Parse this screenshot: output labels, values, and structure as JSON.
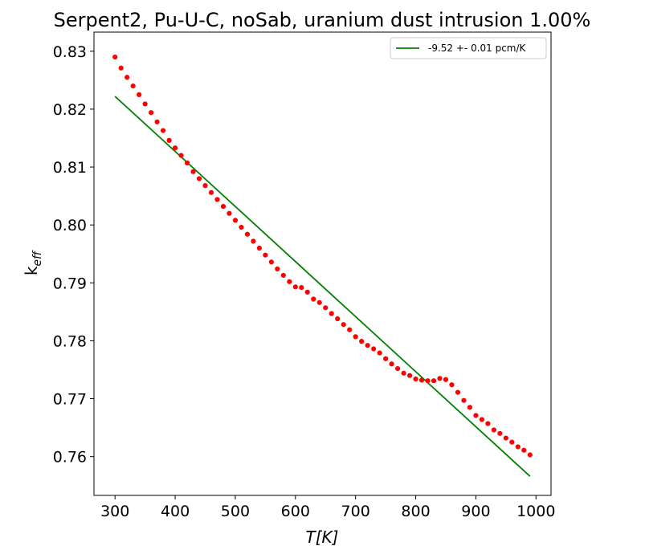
{
  "chart_data": {
    "type": "scatter",
    "title": "Serpent2, Pu-U-C, noSab, uranium dust intrusion  1.00%",
    "xlabel": "T[K]",
    "ylabel_main": "k",
    "ylabel_sub": "eff",
    "xlim": [
      265,
      1025
    ],
    "ylim": [
      0.7533,
      0.8333
    ],
    "x_ticks": [
      300,
      400,
      500,
      600,
      700,
      800,
      900,
      1000
    ],
    "x_tick_labels": [
      "300",
      "400",
      "500",
      "600",
      "700",
      "800",
      "900",
      "1000"
    ],
    "y_ticks": [
      0.76,
      0.77,
      0.78,
      0.79,
      0.8,
      0.81,
      0.82,
      0.83
    ],
    "y_tick_labels": [
      "0.76",
      "0.77",
      "0.78",
      "0.79",
      "0.80",
      "0.81",
      "0.82",
      "0.83"
    ],
    "legend_position": "top-right",
    "grid": false,
    "series": [
      {
        "kind": "scatter",
        "color": "#ff0000",
        "x": [
          300,
          310,
          320,
          330,
          340,
          350,
          360,
          370,
          380,
          390,
          400,
          410,
          420,
          430,
          440,
          450,
          460,
          470,
          480,
          490,
          500,
          510,
          520,
          530,
          540,
          550,
          560,
          570,
          580,
          590,
          600,
          610,
          620,
          630,
          640,
          650,
          660,
          670,
          680,
          690,
          700,
          710,
          720,
          730,
          740,
          750,
          760,
          770,
          780,
          790,
          800,
          810,
          820,
          830,
          840,
          850,
          860,
          870,
          880,
          890,
          900,
          910,
          920,
          930,
          940,
          950,
          960,
          970,
          980,
          990
        ],
        "y": [
          0.829,
          0.8271,
          0.8255,
          0.824,
          0.8225,
          0.8209,
          0.8194,
          0.8178,
          0.8163,
          0.8146,
          0.8133,
          0.812,
          0.8107,
          0.8092,
          0.808,
          0.8068,
          0.8056,
          0.8044,
          0.8032,
          0.802,
          0.8008,
          0.7996,
          0.7984,
          0.7972,
          0.796,
          0.7948,
          0.7936,
          0.7924,
          0.7913,
          0.7902,
          0.7893,
          0.7892,
          0.7884,
          0.7872,
          0.7866,
          0.7857,
          0.7847,
          0.7838,
          0.7828,
          0.7819,
          0.7807,
          0.7799,
          0.7792,
          0.7786,
          0.7779,
          0.7769,
          0.776,
          0.7752,
          0.7744,
          0.774,
          0.7734,
          0.7732,
          0.7731,
          0.7731,
          0.7735,
          0.7733,
          0.7724,
          0.7711,
          0.7697,
          0.7685,
          0.7671,
          0.7664,
          0.7657,
          0.7646,
          0.764,
          0.7632,
          0.7625,
          0.7617,
          0.7611,
          0.7603
        ]
      },
      {
        "kind": "line",
        "name": "-9.52 +- 0.01 pcm/K",
        "color": "#008000",
        "x": [
          300,
          990
        ],
        "y": [
          0.8222,
          0.7566
        ]
      }
    ]
  }
}
